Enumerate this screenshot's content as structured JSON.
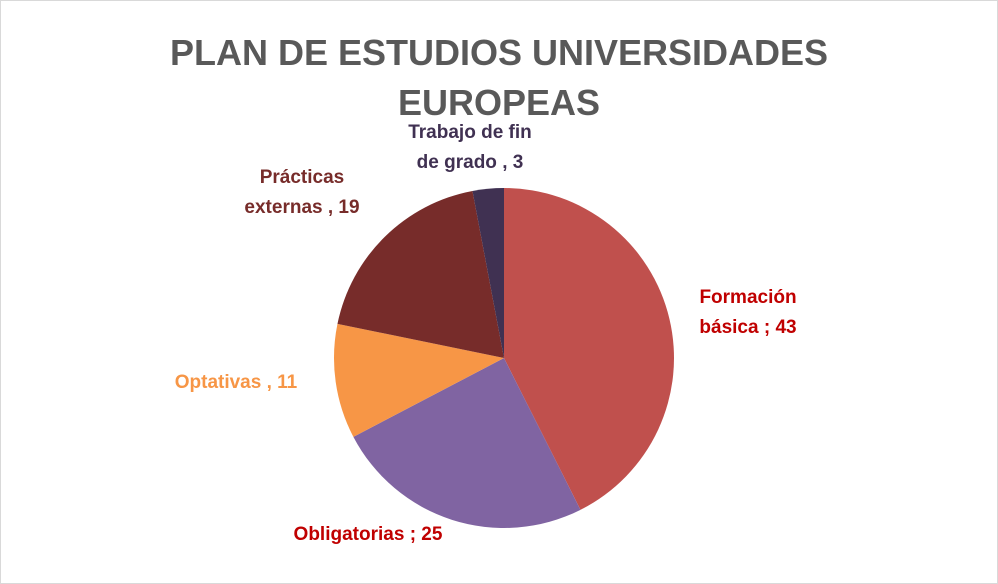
{
  "chart_data": {
    "type": "pie",
    "title": "PLAN DE ESTUDIOS UNIVERSIDADES EUROPEAS",
    "categories": [
      "Formación básica",
      "Obligatorias",
      "Optativas",
      "Prácticas externas",
      "Trabajo de fin de grado"
    ],
    "values": [
      43,
      25,
      11,
      19,
      3
    ],
    "value_labels": [
      "; 43",
      "; 25",
      ", 11",
      ", 19",
      ", 3"
    ],
    "colors": [
      "#c0504d",
      "#8064a2",
      "#f79646",
      "#772c2a",
      "#403152"
    ],
    "label_colors": [
      "#c00000",
      "#c00000",
      "#f79646",
      "#772c2a",
      "#403152"
    ]
  }
}
